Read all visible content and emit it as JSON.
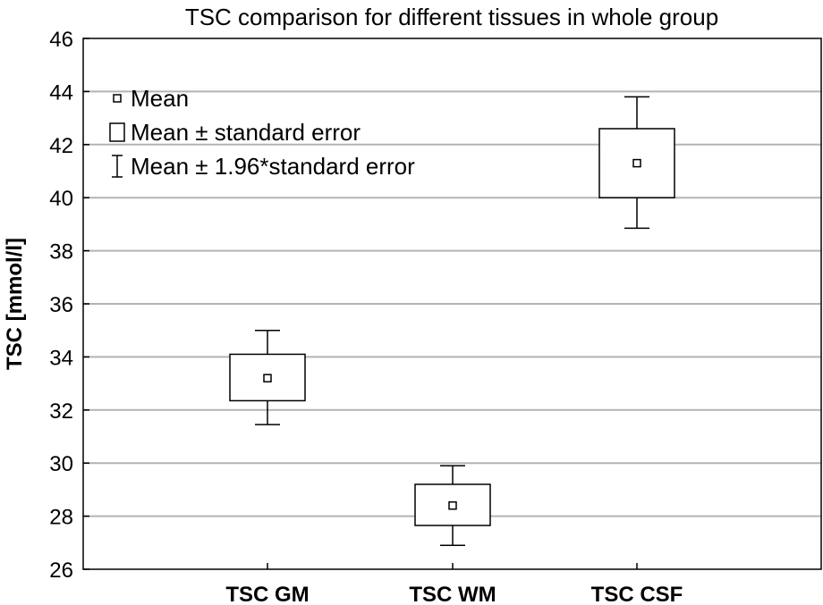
{
  "chart_data": {
    "type": "box",
    "title": "TSC comparison for different tissues in whole group",
    "xlabel": "",
    "ylabel": "TSC [mmol/l]",
    "ylim": [
      26,
      46
    ],
    "yticks": [
      26,
      28,
      30,
      32,
      34,
      36,
      38,
      40,
      42,
      44,
      46
    ],
    "grid": true,
    "legend_position": "top-left",
    "legend": [
      {
        "symbol": "small-square",
        "label": "Mean"
      },
      {
        "symbol": "box",
        "label": "Mean ± standard error"
      },
      {
        "symbol": "whisker",
        "label": "Mean ± 1.96*standard error"
      }
    ],
    "categories": [
      "TSC GM",
      "TSC WM",
      "TSC CSF"
    ],
    "series": [
      {
        "category": "TSC GM",
        "mean": 33.2,
        "se_low": 32.35,
        "se_high": 34.1,
        "ci_low": 31.45,
        "ci_high": 35.0
      },
      {
        "category": "TSC WM",
        "mean": 28.4,
        "se_low": 27.65,
        "se_high": 29.2,
        "ci_low": 26.9,
        "ci_high": 29.9
      },
      {
        "category": "TSC CSF",
        "mean": 41.3,
        "se_low": 40.0,
        "se_high": 42.6,
        "ci_low": 38.85,
        "ci_high": 43.8
      }
    ],
    "colors": {
      "grid": "#b3b3b3",
      "axis": "#000000",
      "box_fill": "#ffffff"
    }
  }
}
